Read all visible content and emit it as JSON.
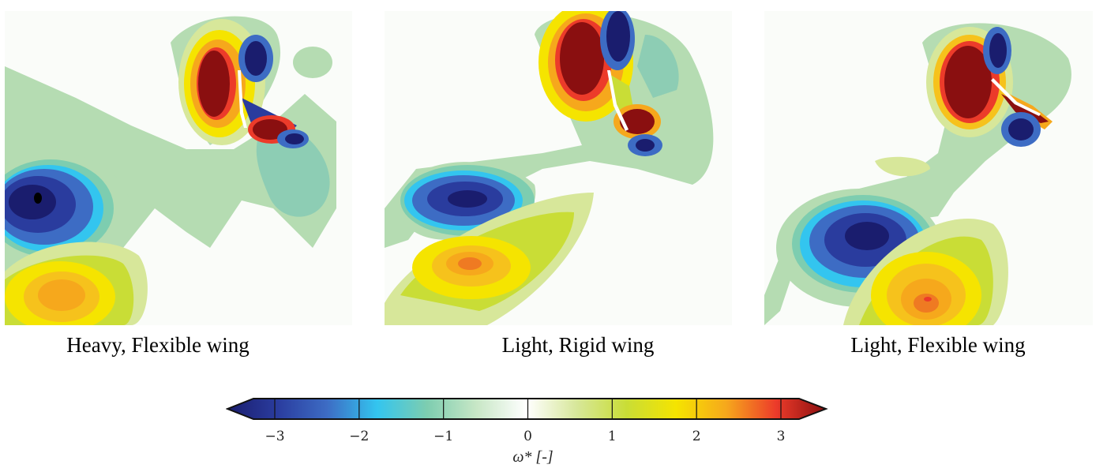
{
  "panels": [
    {
      "caption": "Heavy, Flexible wing"
    },
    {
      "caption": "Light, Rigid wing"
    },
    {
      "caption": "Light, Flexible wing"
    }
  ],
  "colorbar": {
    "ticks": [
      "−3",
      "−2",
      "−1",
      "0",
      "1",
      "2",
      "3"
    ],
    "label": "ω* [-]",
    "range": [
      -3.5,
      3.5
    ],
    "colormap": [
      "#1a1d6e",
      "#2a3c9e",
      "#3d6cc4",
      "#33c5ef",
      "#7dcdb0",
      "#c8e7c6",
      "#ffffff",
      "#d7e79a",
      "#c9dd36",
      "#f5e400",
      "#f6a81c",
      "#ec3b2a",
      "#8a0f10"
    ]
  }
}
